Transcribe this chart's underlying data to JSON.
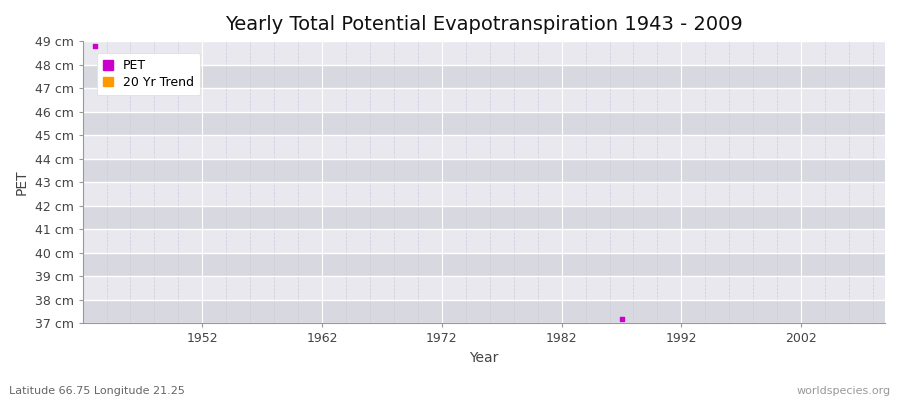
{
  "title": "Yearly Total Potential Evapotranspiration 1943 - 2009",
  "xlabel": "Year",
  "ylabel": "PET",
  "subtitle": "Latitude 66.75 Longitude 21.25",
  "watermark": "worldspecies.org",
  "ylim": [
    37,
    49
  ],
  "xlim": [
    1942,
    2009
  ],
  "ytick_labels": [
    "37 cm",
    "38 cm",
    "39 cm",
    "40 cm",
    "41 cm",
    "42 cm",
    "43 cm",
    "44 cm",
    "45 cm",
    "46 cm",
    "47 cm",
    "48 cm",
    "49 cm"
  ],
  "ytick_values": [
    37,
    38,
    39,
    40,
    41,
    42,
    43,
    44,
    45,
    46,
    47,
    48,
    49
  ],
  "xtick_values": [
    1952,
    1962,
    1972,
    1982,
    1992,
    2002
  ],
  "pet_data": [
    [
      1943,
      48.8
    ],
    [
      1987,
      37.2
    ]
  ],
  "pet_color": "#cc00cc",
  "trend_color": "#ff9900",
  "legend_pet": "PET",
  "legend_trend": "20 Yr Trend",
  "fig_bg_color": "#ffffff",
  "plot_bg_color": "#e8e8ee",
  "band_color_light": "#e8e8ee",
  "band_color_dark": "#d8d8e0",
  "grid_major_color": "#ffffff",
  "grid_minor_color": "#ccccdd",
  "title_fontsize": 14,
  "label_fontsize": 10,
  "tick_fontsize": 9
}
